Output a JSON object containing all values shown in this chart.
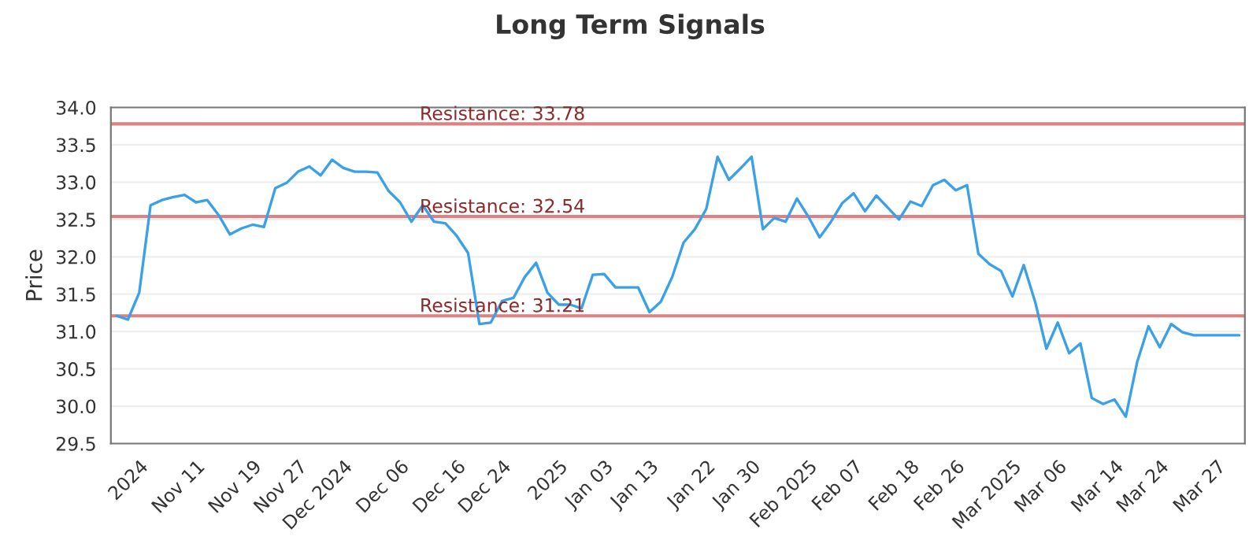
{
  "chart_data": {
    "type": "line",
    "title": "Long Term Signals",
    "ylabel": "Price",
    "categories": [
      null,
      null,
      "2024",
      null,
      null,
      null,
      null,
      "Nov 11",
      null,
      null,
      null,
      null,
      "Nov 19",
      null,
      null,
      null,
      "Nov 27",
      null,
      null,
      null,
      "Dec 2024",
      null,
      null,
      null,
      null,
      "Dec 06",
      null,
      null,
      null,
      null,
      "Dec 16",
      null,
      null,
      null,
      "Dec 24",
      null,
      null,
      null,
      null,
      "2025",
      null,
      null,
      null,
      "Jan 03",
      null,
      null,
      null,
      "Jan 13",
      null,
      null,
      null,
      null,
      "Jan 22",
      null,
      null,
      null,
      "Jan 30",
      null,
      null,
      null,
      null,
      "Feb 2025",
      null,
      null,
      null,
      "Feb 07",
      null,
      null,
      null,
      null,
      "Feb 18",
      null,
      null,
      null,
      "Feb 26",
      null,
      null,
      null,
      null,
      "Mar 2025",
      null,
      null,
      null,
      "Mar 06",
      null,
      null,
      null,
      null,
      "Mar 14",
      null,
      null,
      null,
      "Mar 24",
      null,
      null,
      null,
      null,
      "Mar 27",
      null,
      null
    ],
    "series": [
      {
        "color": "#3aa0e8",
        "values": [
          31.21,
          31.16,
          31.52,
          32.69,
          32.76,
          32.8,
          32.83,
          32.73,
          32.76,
          32.56,
          32.3,
          32.38,
          32.43,
          32.4,
          32.92,
          32.99,
          33.14,
          33.21,
          33.09,
          33.3,
          33.19,
          33.14,
          33.14,
          33.13,
          32.88,
          32.73,
          32.47,
          32.69,
          32.47,
          32.45,
          32.28,
          32.05,
          31.1,
          31.12,
          31.41,
          31.45,
          31.73,
          31.92,
          31.52,
          31.36,
          31.36,
          31.31,
          31.76,
          31.77,
          31.59,
          31.59,
          31.59,
          31.26,
          31.4,
          31.73,
          32.19,
          32.37,
          32.64,
          33.34,
          33.03,
          33.18,
          33.34,
          32.37,
          32.52,
          32.47,
          32.78,
          32.54,
          32.26,
          32.47,
          32.72,
          32.85,
          32.61,
          32.82,
          32.66,
          32.5,
          32.74,
          32.68,
          32.96,
          33.03,
          32.89,
          32.96,
          32.04,
          31.9,
          31.81,
          31.47,
          31.89,
          31.4,
          30.77,
          31.12,
          30.71,
          30.84,
          30.11,
          30.03,
          30.09,
          29.86,
          30.59,
          31.07,
          30.79,
          31.1,
          30.99,
          30.95,
          30.95,
          30.95,
          30.95,
          30.95
        ]
      }
    ],
    "ylim": [
      29.5,
      34.0
    ],
    "yticks": [
      {
        "value": 29.5,
        "label": "29.5"
      },
      {
        "value": 30.0,
        "label": "30.0"
      },
      {
        "value": 30.5,
        "label": "30.5"
      },
      {
        "value": 31.0,
        "label": "31.0"
      },
      {
        "value": 31.5,
        "label": "31.5"
      },
      {
        "value": 32.0,
        "label": "32.0"
      },
      {
        "value": 32.5,
        "label": "32.5"
      },
      {
        "value": 33.0,
        "label": "33.0"
      },
      {
        "value": 33.5,
        "label": "33.5"
      },
      {
        "value": 34.0,
        "label": "34.0"
      }
    ],
    "grid": "y",
    "marker": "none",
    "line_style": "solid",
    "ref_lines": [
      {
        "axis": "y",
        "value": 33.78,
        "label": "Resistance: 33.78",
        "color": "#e08080"
      },
      {
        "axis": "y",
        "value": 32.54,
        "label": "Resistance: 32.54",
        "color": "#e08080"
      },
      {
        "axis": "y",
        "value": 31.21,
        "label": "Resistance: 31.21",
        "color": "#e08080"
      }
    ]
  }
}
